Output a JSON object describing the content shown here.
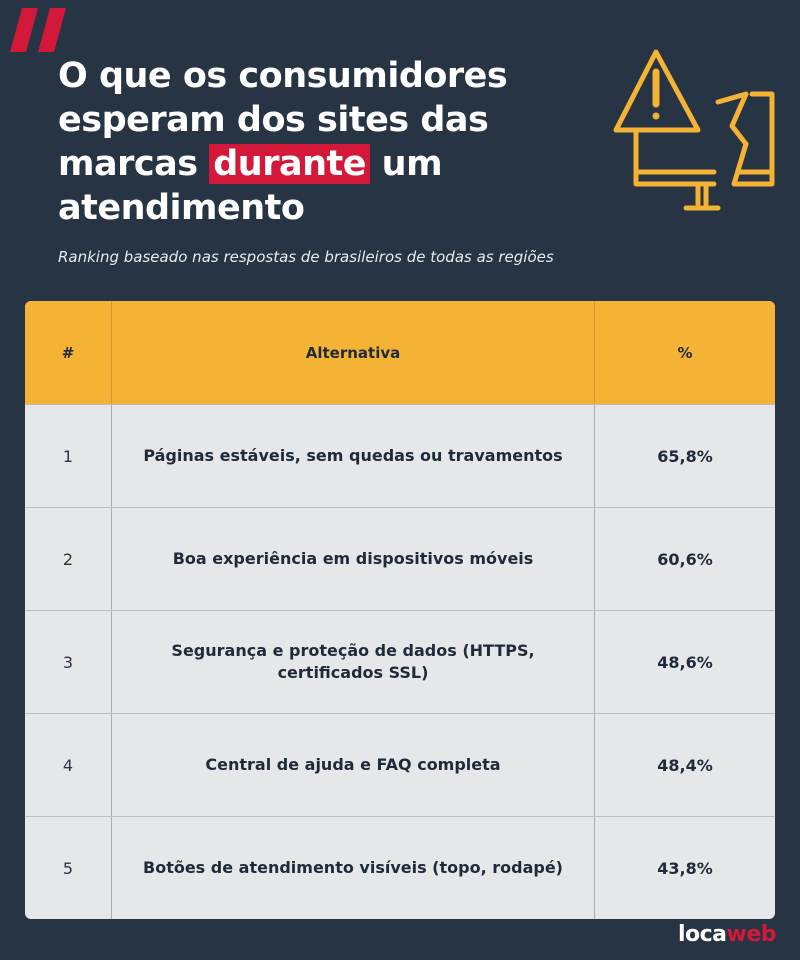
{
  "header": {
    "title_before": "O que os consumidores esperam dos sites das marcas ",
    "title_highlight": "durante",
    "title_after": " um atendimento",
    "subtitle": "Ranking baseado nas respostas de brasileiros de todas as regiões"
  },
  "table": {
    "columns": [
      "#",
      "Alternativa",
      "%"
    ],
    "rows": [
      {
        "rank": "1",
        "alternative": "Páginas estáveis, sem quedas ou travamentos",
        "percent": "65,8%"
      },
      {
        "rank": "2",
        "alternative": "Boa experiência em dispositivos móveis",
        "percent": "60,6%"
      },
      {
        "rank": "3",
        "alternative": "Segurança e proteção de dados (HTTPS, certificados SSL)",
        "percent": "48,6%"
      },
      {
        "rank": "4",
        "alternative": "Central de ajuda e FAQ completa",
        "percent": "48,4%"
      },
      {
        "rank": "5",
        "alternative": "Botões de atendimento visíveis (topo, rodapé)",
        "percent": "43,8%"
      }
    ]
  },
  "logo": {
    "text_main": "loca",
    "text_accent": "web"
  },
  "colors": {
    "background": "#263444",
    "accent_red": "#d3183a",
    "accent_yellow": "#f5b335",
    "table_body": "#e6e7e9"
  },
  "icons": {
    "quote": "quote-mark-icon",
    "illustration": "warning-broken-monitor-icon"
  }
}
